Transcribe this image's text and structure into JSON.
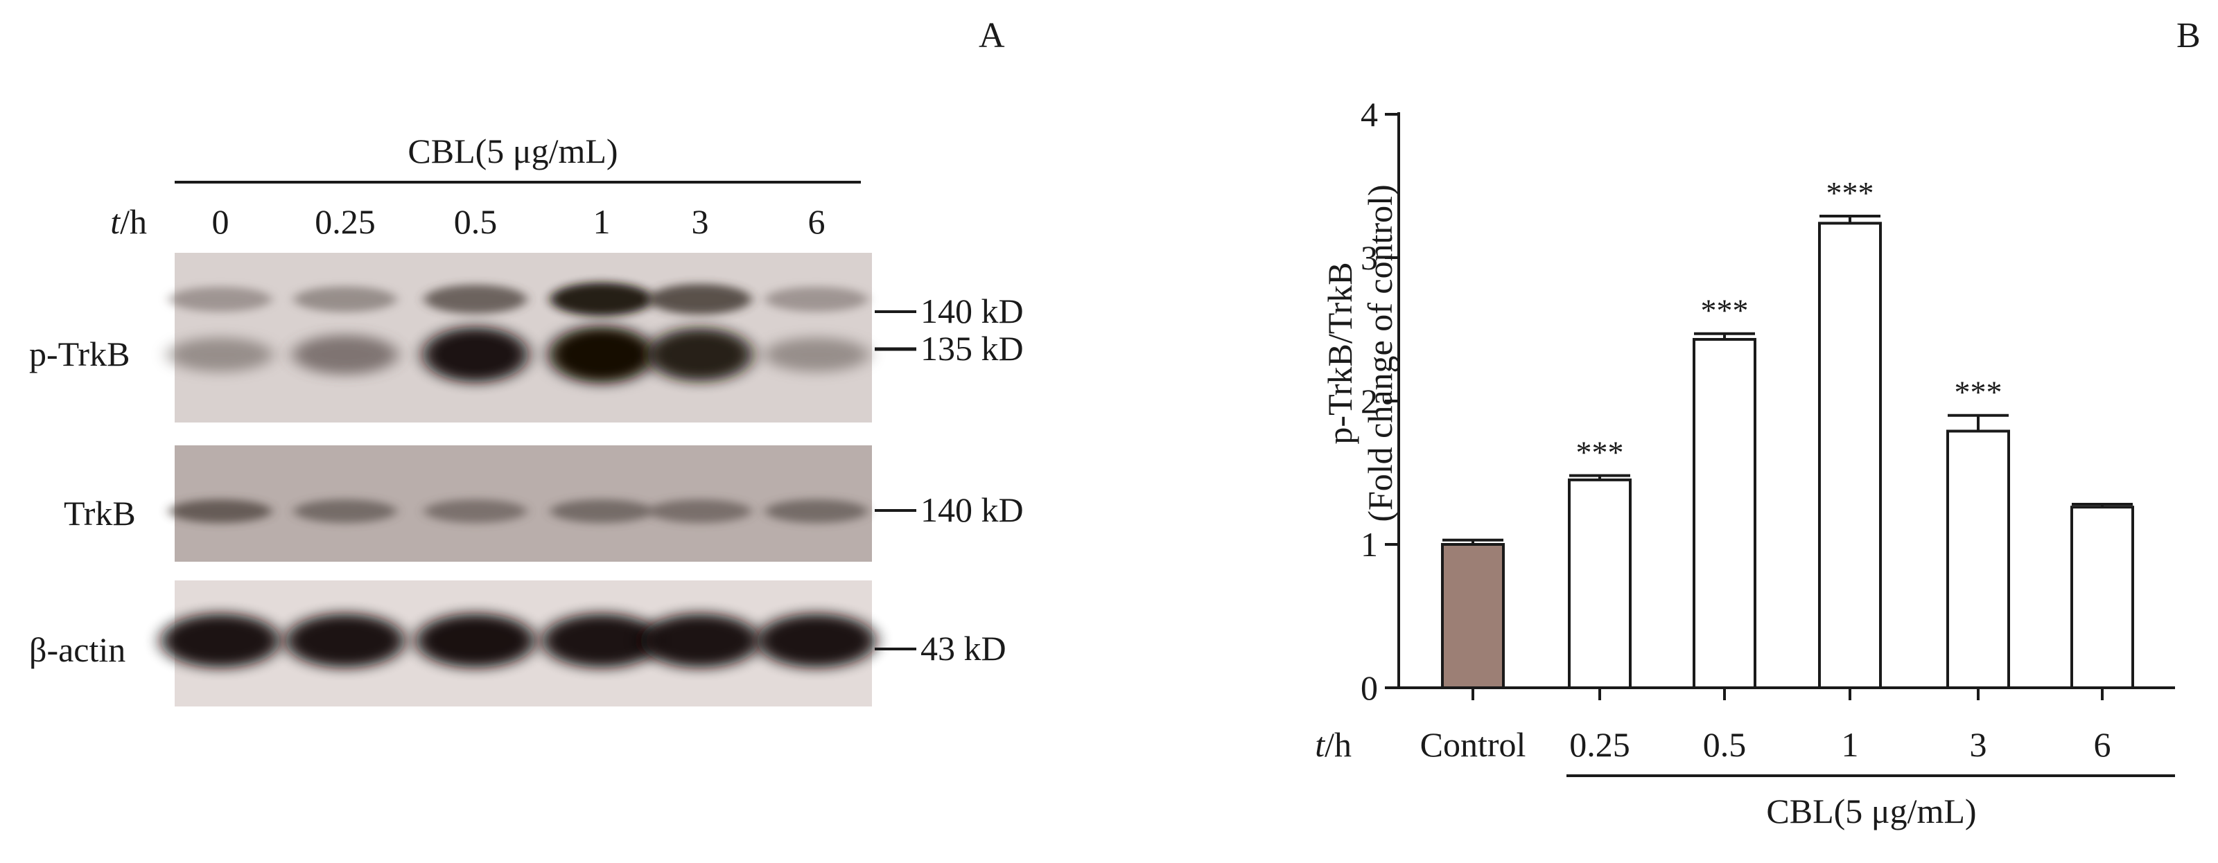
{
  "panel_a": {
    "letter": "A",
    "treatment_label": "CBL(5 μg/mL)",
    "time_axis_var": "t",
    "time_axis_unit": "/h",
    "lanes": [
      "0",
      "0.25",
      "0.5",
      "1",
      "3",
      "6"
    ],
    "blots": [
      {
        "name": "p-TrkB",
        "markers": [
          "140 kD",
          "135 kD"
        ],
        "upper_band_intensity": [
          0.3,
          0.35,
          0.6,
          0.92,
          0.7,
          0.3
        ],
        "lower_band_intensity": [
          0.35,
          0.5,
          0.95,
          1.0,
          0.9,
          0.35
        ]
      },
      {
        "name": "TrkB",
        "markers": [
          "140 kD"
        ],
        "band_intensity": [
          0.55,
          0.45,
          0.4,
          0.45,
          0.42,
          0.45
        ]
      },
      {
        "name": "β-actin",
        "markers": [
          "43 kD"
        ],
        "band_intensity": [
          0.95,
          0.95,
          0.97,
          0.95,
          0.95,
          0.95
        ]
      }
    ]
  },
  "panel_b": {
    "letter": "B",
    "colors": {
      "control": "#9c7f75",
      "treated": "#ffffff",
      "stroke": "#1a1a1a"
    },
    "chart_data": {
      "type": "bar",
      "categories": [
        "Control",
        "0.25",
        "0.5",
        "1",
        "3",
        "6"
      ],
      "values": [
        1.0,
        1.45,
        2.43,
        3.24,
        1.79,
        1.26
      ],
      "errors": [
        0.03,
        0.03,
        0.04,
        0.05,
        0.11,
        0.02
      ],
      "significance": [
        "",
        "***",
        "***",
        "***",
        "***",
        ""
      ],
      "ylabel_line1": "p-TrkB/TrkB",
      "ylabel_line2": "(Fold change of control)",
      "x_axis_var": "t",
      "x_axis_unit": "/h",
      "treatment_label": "CBL(5 μg/mL)",
      "ylim": [
        0,
        4
      ],
      "yticks": [
        "0",
        "1",
        "2",
        "3",
        "4"
      ],
      "grid": false
    }
  }
}
